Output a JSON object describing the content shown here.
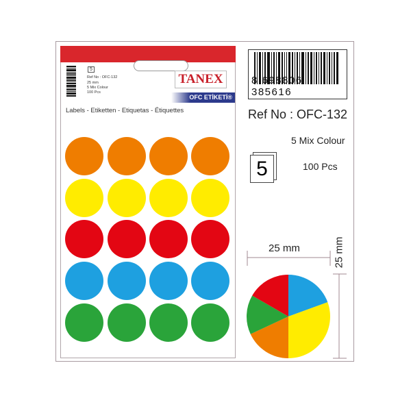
{
  "brand": "TANEX",
  "sheet": {
    "product_line": "OFC ETİKETİ®",
    "pack_count": "5",
    "ref": "Ref No : OFC-132",
    "size": "25 mm",
    "mix": "5 Mix Colour",
    "pcs": "100 Pcs",
    "labels": "Labels - Etiketten - Etiquetas - Étiquettes"
  },
  "info": {
    "barcode": "8 698806 385616",
    "ref": "Ref No : OFC-132",
    "mix": "5 Mix Colour",
    "pack_count": "5",
    "pcs": "100 Pcs"
  },
  "dimensions": {
    "width": "25 mm",
    "height": "25 mm"
  },
  "dot_rows": [
    {
      "color": "#ef7d00"
    },
    {
      "color": "#ffec00"
    },
    {
      "color": "#e30613"
    },
    {
      "color": "#1ea0e0"
    },
    {
      "color": "#2aa43a"
    }
  ],
  "pie_colors": {
    "blue": "#1ea0e0",
    "yellow": "#ffec00",
    "orange": "#ef7d00",
    "green": "#2aa43a",
    "red": "#e30613"
  }
}
